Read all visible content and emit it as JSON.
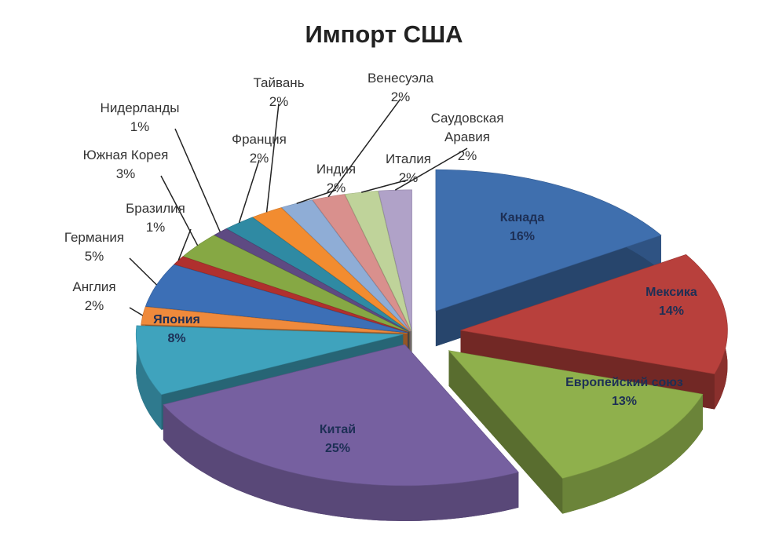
{
  "chart_data": {
    "type": "pie",
    "title": "Импорт США",
    "categories": [
      "Канада",
      "Мексика",
      "Европейский союз",
      "Китай",
      "Япония",
      "Англия",
      "Германия",
      "Бразилия",
      "Южная Корея",
      "Нидерланды",
      "Франция",
      "Тайвань",
      "Индия",
      "Венесуэла",
      "Италия",
      "Саудовская Аравия"
    ],
    "values": [
      16,
      14,
      13,
      25,
      8,
      2,
      5,
      1,
      3,
      1,
      2,
      2,
      2,
      2,
      2,
      2
    ],
    "value_labels": [
      "16%",
      "14%",
      "13%",
      "25%",
      "8%",
      "2%",
      "5%",
      "1%",
      "3%",
      "1%",
      "2%",
      "2%",
      "2%",
      "2%",
      "2%",
      "2%"
    ],
    "colors": [
      "#3f6fae",
      "#b8403c",
      "#8fb04c",
      "#7660a0",
      "#3fa3bd",
      "#ef8a3c",
      "#3c6fb6",
      "#b0302e",
      "#86a844",
      "#5e4a82",
      "#2f8aa3",
      "#f28c30",
      "#8fadd6",
      "#d9908d",
      "#bfd39a",
      "#b0a2c8"
    ]
  }
}
